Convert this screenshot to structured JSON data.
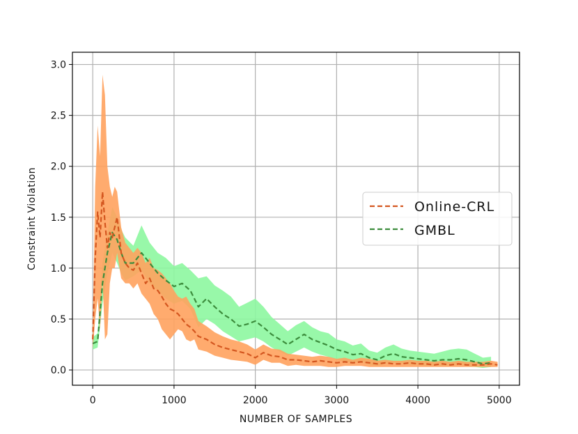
{
  "chart_data": {
    "type": "line",
    "xlabel": "NUMBER OF SAMPLES",
    "ylabel": "Constraint Violation",
    "xlim": [
      -250,
      5250
    ],
    "ylim": [
      -0.15,
      3.12
    ],
    "xticks": [
      0,
      1000,
      2000,
      3000,
      4000,
      5000
    ],
    "yticks": [
      0.0,
      0.5,
      1.0,
      1.5,
      2.0,
      2.5,
      3.0
    ],
    "grid": true,
    "legend_position": "center-right",
    "series": [
      {
        "name": "Online-CRL",
        "line_color": "#d4561f",
        "band_color": "#ffa25e",
        "style": "dashed",
        "x": [
          0,
          30,
          60,
          90,
          120,
          150,
          180,
          210,
          240,
          270,
          300,
          350,
          400,
          450,
          500,
          550,
          600,
          650,
          700,
          750,
          800,
          850,
          900,
          950,
          1000,
          1050,
          1100,
          1150,
          1200,
          1250,
          1300,
          1400,
          1500,
          1600,
          1700,
          1800,
          1900,
          2000,
          2100,
          2200,
          2300,
          2400,
          2500,
          2600,
          2700,
          2800,
          2900,
          3000,
          3100,
          3200,
          3300,
          3400,
          3500,
          3600,
          3700,
          3800,
          3900,
          4000,
          4100,
          4200,
          4300,
          4400,
          4500,
          4600,
          4700,
          4800,
          4900,
          4980
        ],
        "y": [
          0.3,
          1.1,
          1.55,
          1.3,
          1.75,
          1.45,
          1.2,
          1.35,
          1.3,
          1.4,
          1.5,
          1.15,
          1.05,
          1.0,
          0.98,
          1.05,
          0.95,
          0.85,
          0.9,
          0.8,
          0.78,
          0.72,
          0.65,
          0.6,
          0.58,
          0.55,
          0.5,
          0.45,
          0.42,
          0.38,
          0.33,
          0.3,
          0.25,
          0.22,
          0.2,
          0.18,
          0.16,
          0.12,
          0.17,
          0.14,
          0.13,
          0.1,
          0.1,
          0.09,
          0.08,
          0.09,
          0.08,
          0.07,
          0.08,
          0.07,
          0.08,
          0.07,
          0.06,
          0.07,
          0.06,
          0.06,
          0.07,
          0.06,
          0.06,
          0.05,
          0.06,
          0.05,
          0.06,
          0.05,
          0.05,
          0.05,
          0.06,
          0.05
        ],
        "lower": [
          0.2,
          0.5,
          0.7,
          0.4,
          0.9,
          0.3,
          0.35,
          0.85,
          1.0,
          1.0,
          1.15,
          0.9,
          0.85,
          0.85,
          0.8,
          0.85,
          0.75,
          0.7,
          0.65,
          0.55,
          0.5,
          0.4,
          0.35,
          0.3,
          0.35,
          0.4,
          0.38,
          0.3,
          0.28,
          0.3,
          0.2,
          0.18,
          0.14,
          0.12,
          0.1,
          0.09,
          0.08,
          0.05,
          0.1,
          0.07,
          0.07,
          0.04,
          0.05,
          0.04,
          0.04,
          0.04,
          0.03,
          0.03,
          0.04,
          0.04,
          0.04,
          0.03,
          0.03,
          0.03,
          0.03,
          0.03,
          0.03,
          0.03,
          0.03,
          0.03,
          0.03,
          0.03,
          0.03,
          0.03,
          0.03,
          0.03,
          0.03,
          0.03
        ],
        "upper": [
          0.4,
          1.8,
          2.4,
          2.1,
          2.9,
          2.7,
          2.0,
          1.8,
          1.7,
          1.8,
          1.75,
          1.4,
          1.25,
          1.2,
          1.15,
          1.2,
          1.15,
          1.05,
          1.1,
          1.0,
          0.98,
          0.95,
          0.9,
          0.85,
          0.78,
          0.72,
          0.7,
          0.72,
          0.65,
          0.6,
          0.48,
          0.43,
          0.37,
          0.33,
          0.3,
          0.28,
          0.25,
          0.2,
          0.25,
          0.21,
          0.2,
          0.16,
          0.15,
          0.14,
          0.13,
          0.14,
          0.13,
          0.11,
          0.12,
          0.1,
          0.12,
          0.11,
          0.09,
          0.1,
          0.09,
          0.09,
          0.1,
          0.09,
          0.09,
          0.08,
          0.09,
          0.08,
          0.09,
          0.08,
          0.08,
          0.08,
          0.09,
          0.08
        ]
      },
      {
        "name": "GMBL",
        "line_color": "#3c8c3c",
        "band_color": "#8df7a0",
        "style": "dashed",
        "x": [
          0,
          60,
          120,
          180,
          240,
          300,
          350,
          400,
          500,
          600,
          700,
          800,
          900,
          1000,
          1100,
          1200,
          1300,
          1400,
          1500,
          1600,
          1700,
          1800,
          1900,
          2000,
          2100,
          2200,
          2300,
          2400,
          2500,
          2600,
          2700,
          2800,
          2900,
          3000,
          3100,
          3200,
          3300,
          3400,
          3500,
          3600,
          3700,
          3800,
          3900,
          4000,
          4100,
          4200,
          4300,
          4400,
          4500,
          4600,
          4700,
          4800,
          4900
        ],
        "y": [
          0.26,
          0.28,
          0.85,
          1.15,
          1.35,
          1.28,
          1.15,
          1.05,
          1.05,
          1.15,
          1.05,
          0.95,
          0.88,
          0.82,
          0.85,
          0.78,
          0.62,
          0.7,
          0.62,
          0.55,
          0.5,
          0.43,
          0.45,
          0.48,
          0.42,
          0.35,
          0.3,
          0.25,
          0.3,
          0.35,
          0.3,
          0.27,
          0.24,
          0.2,
          0.18,
          0.15,
          0.16,
          0.12,
          0.1,
          0.14,
          0.16,
          0.13,
          0.12,
          0.11,
          0.1,
          0.09,
          0.1,
          0.1,
          0.11,
          0.1,
          0.08,
          0.06,
          0.07
        ],
        "lower": [
          0.2,
          0.22,
          0.65,
          0.95,
          1.15,
          1.05,
          0.95,
          0.88,
          0.92,
          0.98,
          0.85,
          0.78,
          0.7,
          0.65,
          0.68,
          0.6,
          0.42,
          0.5,
          0.45,
          0.38,
          0.33,
          0.28,
          0.3,
          0.32,
          0.28,
          0.22,
          0.18,
          0.14,
          0.18,
          0.22,
          0.18,
          0.15,
          0.13,
          0.1,
          0.08,
          0.07,
          0.08,
          0.05,
          0.04,
          0.06,
          0.07,
          0.06,
          0.05,
          0.05,
          0.04,
          0.04,
          0.04,
          0.04,
          0.05,
          0.04,
          0.03,
          0.02,
          0.03
        ],
        "upper": [
          0.32,
          0.36,
          1.05,
          1.35,
          1.6,
          1.5,
          1.38,
          1.3,
          1.22,
          1.42,
          1.25,
          1.15,
          1.1,
          1.02,
          1.05,
          0.98,
          0.9,
          0.92,
          0.83,
          0.78,
          0.72,
          0.62,
          0.66,
          0.7,
          0.62,
          0.52,
          0.45,
          0.38,
          0.44,
          0.48,
          0.42,
          0.38,
          0.36,
          0.3,
          0.28,
          0.24,
          0.26,
          0.19,
          0.17,
          0.22,
          0.25,
          0.21,
          0.19,
          0.18,
          0.17,
          0.16,
          0.18,
          0.2,
          0.21,
          0.2,
          0.16,
          0.12,
          0.13
        ]
      }
    ]
  }
}
